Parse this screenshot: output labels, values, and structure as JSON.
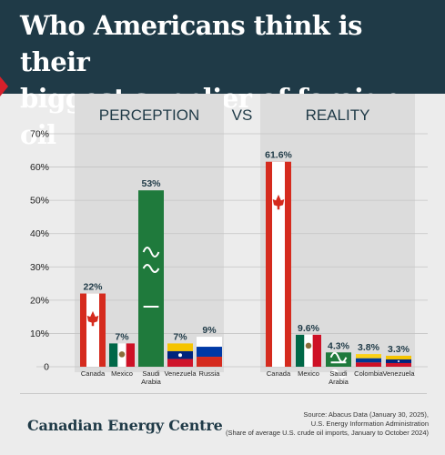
{
  "header": {
    "title_line1": "Who Americans think is their",
    "title_line2": "biggest supplier of foreign oil"
  },
  "chart_data": [
    {
      "type": "bar",
      "title": "PERCEPTION",
      "categories": [
        "Canada",
        "Mexico",
        "Saudi Arabia",
        "Venezuela",
        "Russia"
      ],
      "values": [
        22,
        7,
        53,
        7,
        9
      ],
      "value_labels": [
        "22%",
        "7%",
        "53%",
        "7%",
        "9%"
      ],
      "ylim": [
        0,
        70
      ],
      "yticks": [
        "0",
        "10%",
        "20%",
        "30%",
        "40%",
        "50%",
        "60%",
        "70%"
      ]
    },
    {
      "type": "bar",
      "title": "REALITY",
      "categories": [
        "Canada",
        "Mexico",
        "Saudi Arabia",
        "Colombia",
        "Venezuela"
      ],
      "values": [
        61.6,
        9.6,
        4.3,
        3.8,
        3.3
      ],
      "value_labels": [
        "61.6%",
        "9.6%",
        "4.3%",
        "3.8%",
        "3.3%"
      ],
      "ylim": [
        0,
        70
      ]
    }
  ],
  "vs_label": "VS",
  "flag_colors": {
    "Canada": [
      "#d52b1e",
      "#ffffff"
    ],
    "Mexico": [
      "#006847",
      "#ffffff",
      "#ce1126"
    ],
    "Saudi Arabia": [
      "#1f7a3c",
      "#ffffff"
    ],
    "Venezuela": [
      "#f5c400",
      "#00247d",
      "#cf142b"
    ],
    "Russia": [
      "#ffffff",
      "#0039a6",
      "#d52b1e"
    ],
    "Colombia": [
      "#fcd116",
      "#003893",
      "#ce1126"
    ]
  },
  "footer": {
    "brand": "Canadian Energy Centre",
    "source_line1": "Source: Abacus Data (January 30, 2025),",
    "source_line2": "U.S. Energy Information Administration",
    "source_line3": "(Share of average U.S. crude oil imports, January to October 2024)"
  }
}
